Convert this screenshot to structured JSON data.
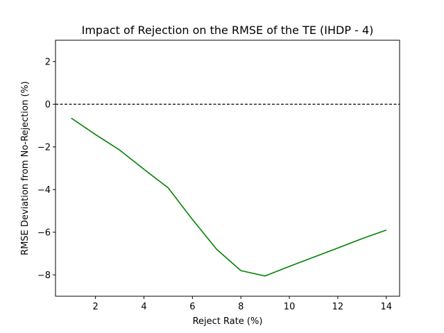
{
  "chart_data": {
    "type": "line",
    "title": "Impact of Rejection on the RMSE of the TE (IHDP - 4)",
    "xlabel": "Reject Rate (%)",
    "ylabel": "RMSE Deviation from No-Rejection (%)",
    "xlim": [
      0.35,
      14.55
    ],
    "ylim": [
      -9,
      3
    ],
    "xticks": [
      2,
      4,
      6,
      8,
      10,
      12,
      14
    ],
    "yticks": [
      -8,
      -6,
      -4,
      -2,
      0,
      2
    ],
    "xtick_labels": [
      "2",
      "4",
      "6",
      "8",
      "10",
      "12",
      "14"
    ],
    "ytick_labels": [
      "−8",
      "−6",
      "−4",
      "−2",
      "0",
      "2"
    ],
    "grid": false,
    "reference_line": {
      "y": 0,
      "style": "dashed",
      "color": "#000000"
    },
    "series": [
      {
        "color": "#008000",
        "x": [
          1,
          2,
          3,
          4,
          5,
          6,
          7,
          8,
          9,
          10,
          11,
          12,
          13,
          14
        ],
        "y": [
          -0.65,
          -1.42,
          -2.15,
          -3.05,
          -3.92,
          -5.4,
          -6.8,
          -7.8,
          -8.05,
          -7.6,
          -7.17,
          -6.74,
          -6.3,
          -5.9
        ]
      }
    ]
  }
}
